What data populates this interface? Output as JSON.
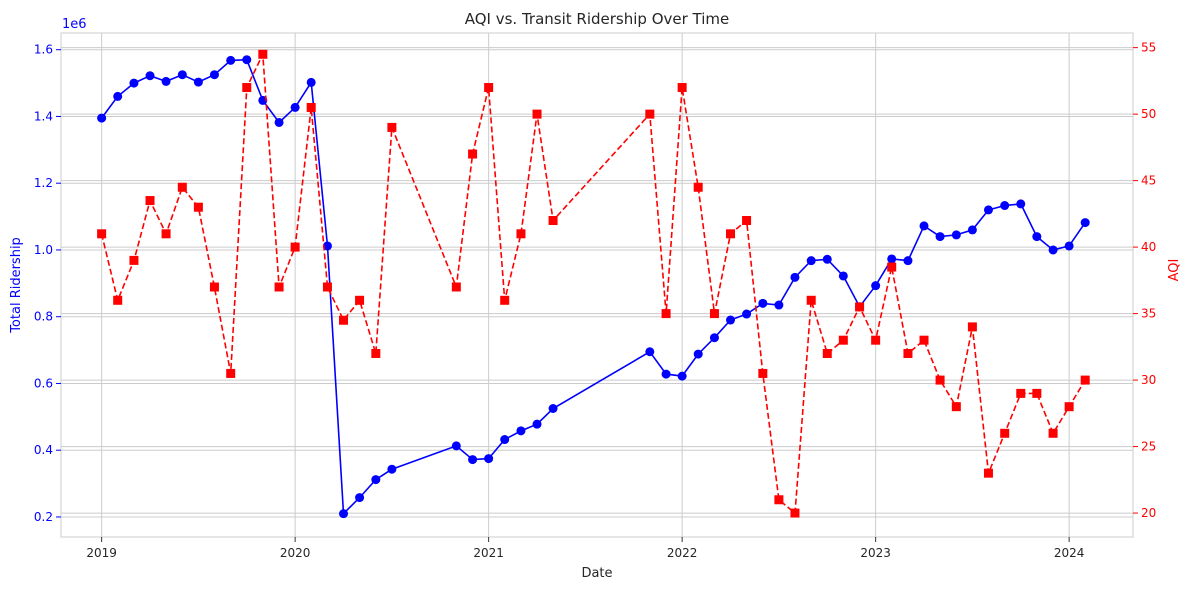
{
  "chart_data": {
    "type": "line",
    "title": "AQI vs. Transit Ridership Over Time",
    "xlabel": "Date",
    "ylabel_left": "Total Ridership",
    "ylabel_right": "AQI",
    "offset_text": "1e6",
    "xlim": [
      2018.79,
      2024.33
    ],
    "ylim_left": [
      0.14,
      1.65
    ],
    "ylim_right": [
      18.2,
      56.1
    ],
    "x_ticks": [
      2019,
      2020,
      2021,
      2022,
      2023,
      2024
    ],
    "x_tick_labels": [
      "2019",
      "2020",
      "2021",
      "2022",
      "2023",
      "2024"
    ],
    "y_left_ticks": [
      0.2,
      0.4,
      0.6,
      0.8,
      1.0,
      1.2,
      1.4,
      1.6
    ],
    "y_left_tick_labels": [
      "0.2",
      "0.4",
      "0.6",
      "0.8",
      "1.0",
      "1.2",
      "1.4",
      "1.6"
    ],
    "y_right_ticks": [
      20,
      25,
      30,
      35,
      40,
      45,
      50,
      55
    ],
    "y_right_tick_labels": [
      "20",
      "25",
      "30",
      "35",
      "40",
      "45",
      "50",
      "55"
    ],
    "grid": true,
    "colors": {
      "ridership": "#0000ff",
      "aqi": "#ff0000",
      "grid": "#cccccc"
    },
    "series": [
      {
        "name": "Total Ridership",
        "axis": "left",
        "style": "solid-circle",
        "x": [
          2019.0,
          2019.083,
          2019.167,
          2019.25,
          2019.333,
          2019.417,
          2019.5,
          2019.583,
          2019.667,
          2019.75,
          2019.833,
          2019.917,
          2020.0,
          2020.083,
          2020.167,
          2020.25,
          2020.333,
          2020.417,
          2020.5,
          2020.833,
          2020.917,
          2021.0,
          2021.083,
          2021.167,
          2021.25,
          2021.333,
          2021.833,
          2021.917,
          2022.0,
          2022.083,
          2022.167,
          2022.25,
          2022.333,
          2022.417,
          2022.5,
          2022.583,
          2022.667,
          2022.75,
          2022.833,
          2022.917,
          2023.0,
          2023.083,
          2023.167,
          2023.25,
          2023.333,
          2023.417,
          2023.5,
          2023.583,
          2023.667,
          2023.75,
          2023.833,
          2023.917,
          2024.0,
          2024.083
        ],
        "values": [
          1.395,
          1.46,
          1.5,
          1.522,
          1.505,
          1.525,
          1.503,
          1.525,
          1.568,
          1.57,
          1.448,
          1.382,
          1.427,
          1.502,
          1.012,
          0.21,
          0.258,
          0.312,
          0.343,
          0.413,
          0.372,
          0.375,
          0.432,
          0.458,
          0.478,
          0.525,
          0.695,
          0.628,
          0.622,
          0.688,
          0.737,
          0.79,
          0.808,
          0.84,
          0.835,
          0.918,
          0.968,
          0.972,
          0.922,
          0.83,
          0.893,
          0.973,
          0.968,
          1.072,
          1.04,
          1.045,
          1.06,
          1.12,
          1.133,
          1.138,
          1.04,
          1.0,
          1.012,
          1.082
        ]
      },
      {
        "name": "AQI",
        "axis": "right",
        "style": "dashed-square",
        "x": [
          2019.0,
          2019.083,
          2019.167,
          2019.25,
          2019.333,
          2019.417,
          2019.5,
          2019.583,
          2019.667,
          2019.75,
          2019.833,
          2019.917,
          2020.0,
          2020.083,
          2020.167,
          2020.25,
          2020.333,
          2020.417,
          2020.5,
          2020.833,
          2020.917,
          2021.0,
          2021.083,
          2021.167,
          2021.25,
          2021.333,
          2021.833,
          2021.917,
          2022.0,
          2022.083,
          2022.167,
          2022.25,
          2022.333,
          2022.417,
          2022.5,
          2022.583,
          2022.667,
          2022.75,
          2022.833,
          2022.917,
          2023.0,
          2023.083,
          2023.167,
          2023.25,
          2023.333,
          2023.417,
          2023.5,
          2023.583,
          2023.667,
          2023.75,
          2023.833,
          2023.917,
          2024.0,
          2024.083
        ],
        "values": [
          41,
          36,
          39,
          43.5,
          41,
          44.5,
          43,
          37,
          30.5,
          52,
          54.5,
          37,
          40,
          50.5,
          37,
          34.5,
          36,
          32,
          49,
          37,
          47,
          52,
          36,
          41,
          50,
          42,
          50,
          35,
          52,
          44.5,
          35,
          41,
          42,
          30.5,
          21,
          20,
          36,
          32,
          33,
          35.5,
          33,
          38.5,
          32,
          33,
          30,
          28,
          34,
          23,
          26,
          29,
          29,
          26,
          28,
          30
        ]
      }
    ]
  }
}
